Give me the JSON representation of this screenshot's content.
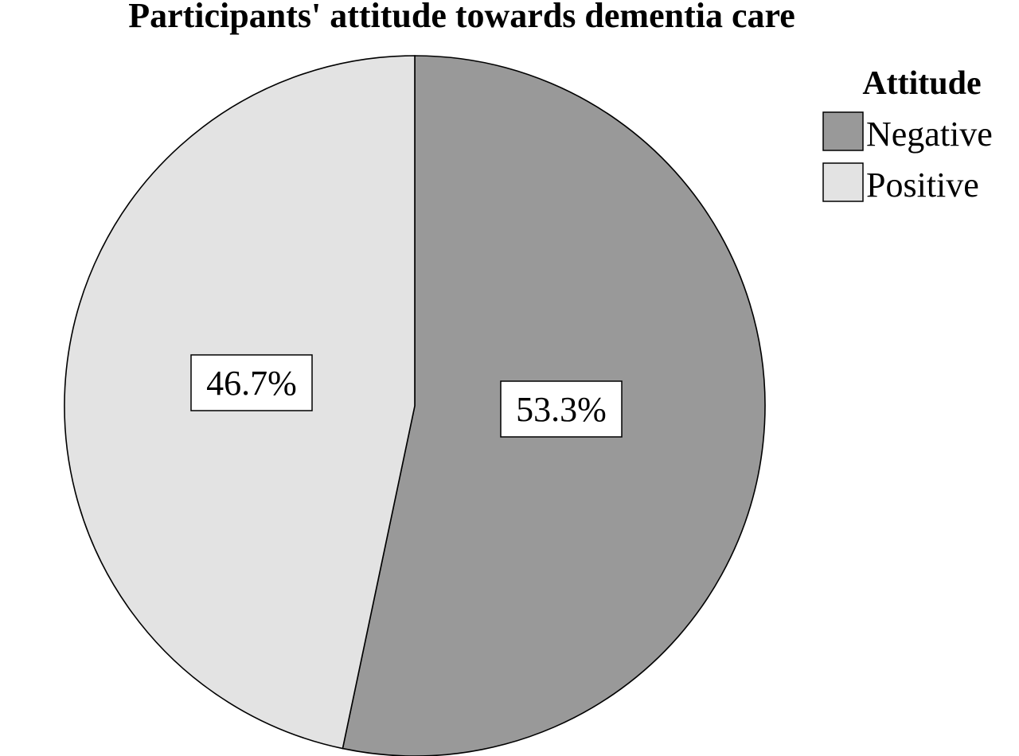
{
  "chart_data": {
    "type": "pie",
    "title": "Participants' attitude towards dementia care",
    "legend": {
      "title": "Attitude",
      "position": "top-right"
    },
    "slices": [
      {
        "name": "Negative",
        "value": 53.3,
        "label": "53.3%",
        "color": "#999999"
      },
      {
        "name": "Positive",
        "value": 46.7,
        "label": "46.7%",
        "color": "#e3e3e3"
      }
    ],
    "start": "12 o'clock",
    "direction": "clockwise"
  }
}
